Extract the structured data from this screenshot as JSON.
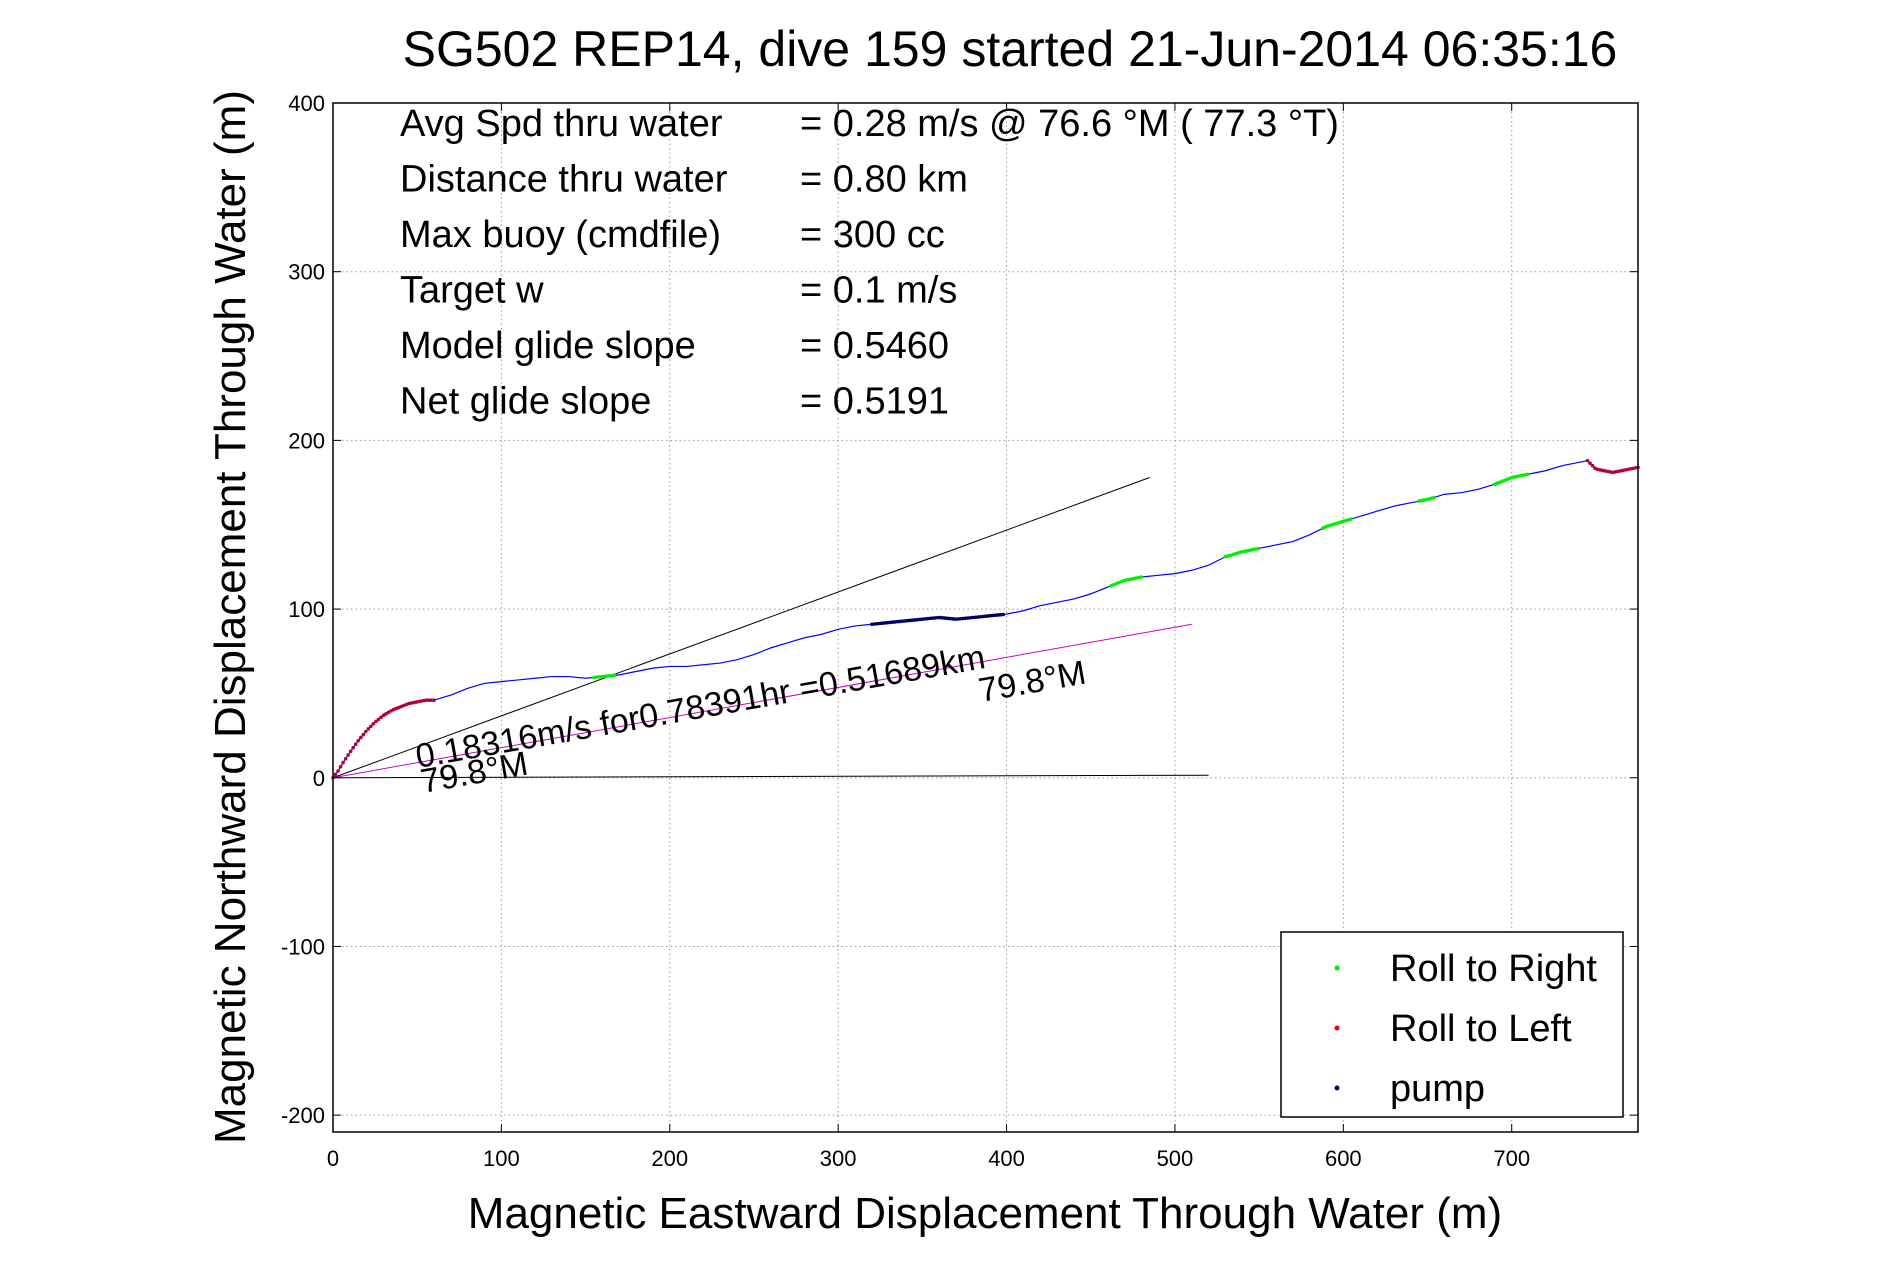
{
  "chart_data": {
    "type": "line",
    "title": "SG502 REP14, dive 159 started 21-Jun-2014 06:35:16",
    "xlabel": "Magnetic Eastward Displacement Through Water (m)",
    "ylabel": "Magnetic Northward Displacement Through Water (m)",
    "xlim": [
      0,
      775
    ],
    "ylim": [
      -210,
      400
    ],
    "xticks": [
      0,
      100,
      200,
      300,
      400,
      500,
      600,
      700
    ],
    "yticks": [
      -200,
      -100,
      0,
      100,
      200,
      300,
      400
    ],
    "grid": true,
    "legend_position": "bottom-right",
    "stats": [
      {
        "label": "Avg Spd thru water",
        "value": "=  0.28 m/s @  76.6 °M ( 77.3 °T)"
      },
      {
        "label": "Distance thru water",
        "value": "=  0.80 km"
      },
      {
        "label": "Max buoy (cmdfile)",
        "value": "= 300 cc"
      },
      {
        "label": "Target w",
        "value": "= 0.1 m/s"
      },
      {
        "label": "Model glide slope",
        "value": "= 0.5460"
      },
      {
        "label": "Net glide slope",
        "value": "= 0.5191"
      }
    ],
    "legend": [
      {
        "name": "Roll to Right",
        "color": "#00ee00"
      },
      {
        "name": "Roll to Left",
        "color": "#ee0000"
      },
      {
        "name": "pump",
        "color": "#000066"
      }
    ],
    "annotations": {
      "current": "0.18316m/s for0.78391hr =0.51689km",
      "heading_origin": "79.8°M",
      "heading_end": "79.8°M"
    },
    "track": {
      "x": [
        0,
        3,
        6,
        10,
        15,
        20,
        25,
        30,
        35,
        40,
        45,
        50,
        55,
        60,
        70,
        80,
        90,
        100,
        110,
        120,
        130,
        140,
        150,
        160,
        170,
        180,
        190,
        200,
        210,
        220,
        230,
        240,
        250,
        260,
        270,
        280,
        290,
        300,
        310,
        320,
        330,
        340,
        350,
        360,
        370,
        380,
        390,
        400,
        410,
        420,
        430,
        440,
        450,
        460,
        470,
        480,
        490,
        500,
        510,
        520,
        530,
        540,
        550,
        560,
        570,
        580,
        590,
        600,
        610,
        620,
        630,
        640,
        650,
        660,
        670,
        680,
        690,
        700,
        710,
        720,
        730,
        740,
        745,
        750,
        755,
        760,
        765,
        770,
        775
      ],
      "y": [
        0,
        4,
        9,
        15,
        22,
        28,
        33,
        37,
        40,
        42,
        44,
        45,
        46,
        46,
        49,
        53,
        56,
        57,
        58,
        59,
        60,
        60,
        59,
        60,
        61,
        63,
        65,
        66,
        66,
        67,
        68,
        70,
        73,
        77,
        80,
        83,
        85,
        88,
        90,
        91,
        92,
        93,
        94,
        95,
        94,
        95,
        96,
        97,
        99,
        102,
        104,
        106,
        109,
        113,
        117,
        119,
        120,
        121,
        123,
        126,
        131,
        134,
        136,
        138,
        140,
        144,
        149,
        152,
        155,
        158,
        161,
        163,
        165,
        168,
        169,
        171,
        174,
        178,
        180,
        182,
        185,
        187,
        188,
        183,
        182,
        181,
        182,
        183,
        184
      ]
    },
    "roll_right_segments": [
      [
        155,
        168
      ],
      [
        462,
        480
      ],
      [
        530,
        550
      ],
      [
        588,
        605
      ],
      [
        645,
        655
      ],
      [
        690,
        710
      ]
    ],
    "roll_left_segments": [
      [
        0,
        60
      ],
      [
        745,
        775
      ]
    ],
    "pump_segment": [
      320,
      398
    ],
    "reference_lines": [
      {
        "name": "model-glide-line",
        "x": [
          0,
          485
        ],
        "y": [
          0,
          178
        ],
        "color": "#000000"
      },
      {
        "name": "current-line",
        "x": [
          0,
          510
        ],
        "y": [
          0,
          91
        ],
        "color": "#cc00cc"
      },
      {
        "name": "axis-zero-line",
        "x": [
          0,
          520
        ],
        "y": [
          0,
          1.5
        ],
        "color": "#000000"
      }
    ],
    "series_colors": {
      "track": "#0000ff"
    }
  }
}
